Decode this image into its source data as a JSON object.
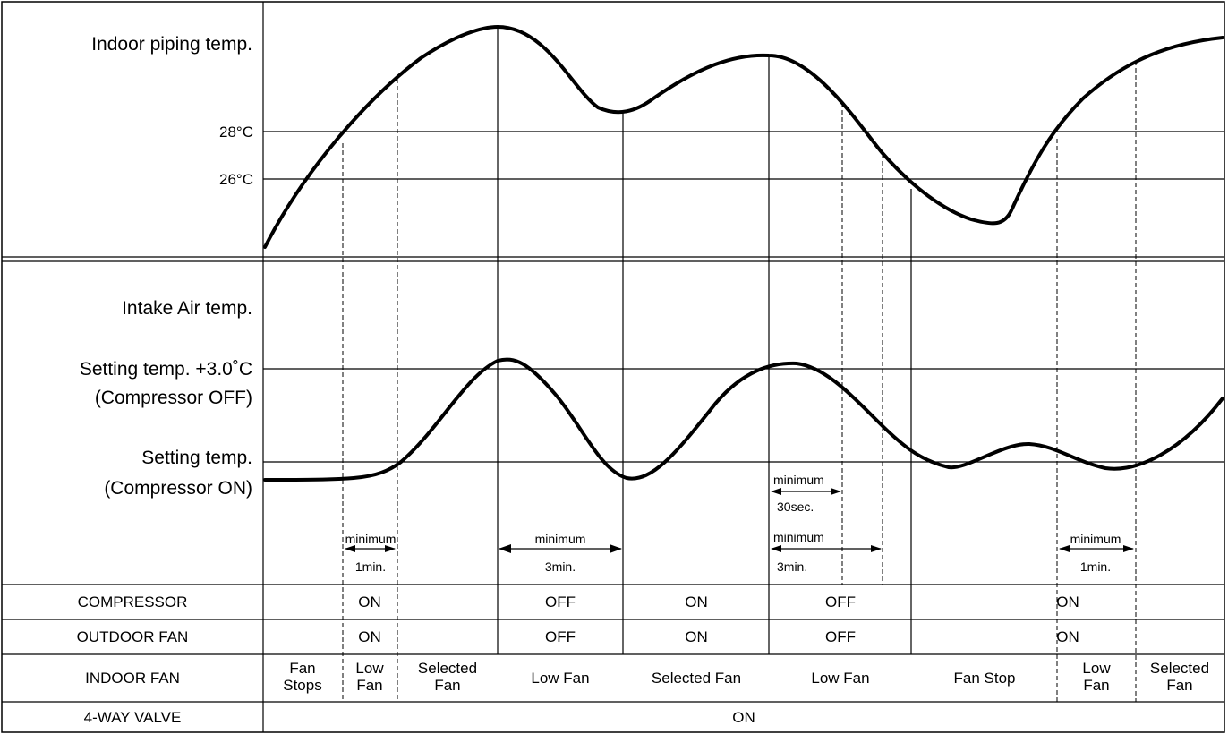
{
  "top_panel": {
    "title": "Indoor piping temp.",
    "ticks": [
      "28°C",
      "26°C"
    ]
  },
  "mid_panel": {
    "title": "Intake Air temp.",
    "off_label_1": "Setting temp. +3.0˚C",
    "off_label_2": "(Compressor OFF)",
    "on_label_1": "Setting temp.",
    "on_label_2": "(Compressor ON)"
  },
  "timers": {
    "t1_top": "minimum",
    "t1_bottom": "1min.",
    "t2_top": "minimum",
    "t2_bottom": "3min.",
    "t3_top": "minimum",
    "t3_bottom": "30sec.",
    "t4_top": "minimum",
    "t4_bottom": "3min.",
    "t5_top": "minimum",
    "t5_bottom": "1min."
  },
  "table": {
    "compressor": {
      "label": "COMPRESSOR",
      "cells": [
        "ON",
        "OFF",
        "ON",
        "OFF",
        "ON"
      ]
    },
    "outdoor_fan": {
      "label": "OUTDOOR FAN",
      "cells": [
        "ON",
        "OFF",
        "ON",
        "OFF",
        "ON"
      ]
    },
    "indoor_fan": {
      "label": "INDOOR FAN",
      "cells": [
        [
          "Fan",
          "Stops"
        ],
        [
          "Low",
          "Fan"
        ],
        [
          "Selected",
          "Fan"
        ],
        [
          "Low Fan"
        ],
        [
          "Selected Fan"
        ],
        [
          "Low Fan"
        ],
        [
          "Fan Stop"
        ],
        [
          "Low",
          "Fan"
        ],
        [
          "Selected",
          "Fan"
        ]
      ]
    },
    "four_way_valve": {
      "label": "4-WAY VALVE",
      "cells": [
        "ON"
      ]
    }
  }
}
